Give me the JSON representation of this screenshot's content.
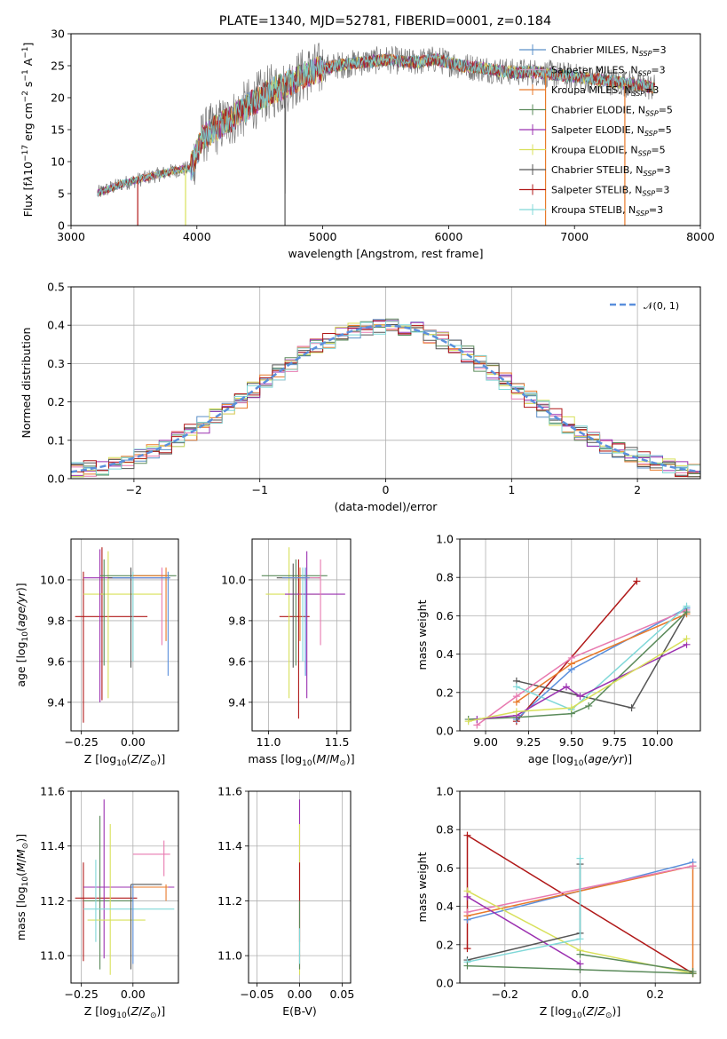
{
  "figure_title": "PLATE=1340, MJD=52781, FIBERID=0001, z=0.184",
  "colors": {
    "chabrier_miles": "#5a8fc8",
    "salpeter_miles": "#c8a0c0",
    "kroupa_miles": "#e87a2a",
    "chabrier_elodie": "#5a8a5a",
    "salpeter_elodie": "#9b30b0",
    "kroupa_elodie": "#d8e05a",
    "chabrier_stelib": "#555555",
    "salpeter_stelib": "#b01818",
    "kroupa_stelib": "#80d8d8",
    "extra_blue": "#5a8fdc",
    "extra_pink": "#e87ab0"
  },
  "chart_data": [
    {
      "id": "spectrum",
      "type": "line",
      "title": "PLATE=1340, MJD=52781, FIBERID=0001, z=0.184",
      "xlabel": "wavelength [Angstrom, rest frame]",
      "ylabel": "Flux [f_λ 10^-17 erg cm^-2 s^-1 A^-1]",
      "xlim": [
        3000,
        8000
      ],
      "ylim": [
        0,
        30
      ],
      "xticks": [
        "3000",
        "4000",
        "5000",
        "6000",
        "7000",
        "8000"
      ],
      "yticks": [
        "0",
        "5",
        "10",
        "15",
        "20",
        "25",
        "30"
      ],
      "grid": false,
      "legend_position": "top-right",
      "legend": [
        {
          "name": "Chabrier MILES, N_SSP=3",
          "color": "#5a8fc8"
        },
        {
          "name": "Salpeter MILES, N_SSP=3",
          "color": "#c8a0c0"
        },
        {
          "name": "Kroupa MILES, N_SSP=3",
          "color": "#e87a2a"
        },
        {
          "name": "Chabrier ELODIE, N_SSP=5",
          "color": "#5a8a5a"
        },
        {
          "name": "Salpeter ELODIE, N_SSP=5",
          "color": "#9b30b0"
        },
        {
          "name": "Kroupa ELODIE, N_SSP=5",
          "color": "#d8e05a"
        },
        {
          "name": "Chabrier STELIB, N_SSP=3",
          "color": "#555555"
        },
        {
          "name": "Salpeter STELIB, N_SSP=3",
          "color": "#b01818"
        },
        {
          "name": "Kroupa STELIB, N_SSP=3",
          "color": "#80d8d8"
        }
      ],
      "continuum": {
        "x": [
          3200,
          3400,
          3600,
          3800,
          3950,
          4050,
          4300,
          4500,
          4700,
          4900,
          5100,
          5300,
          5500,
          5700,
          5900,
          6100,
          6300,
          6500,
          6700,
          6900,
          7100,
          7300,
          7500,
          7650
        ],
        "y": [
          5,
          6.5,
          7.5,
          8.5,
          9,
          14,
          17,
          20,
          22,
          24,
          25,
          25.5,
          26,
          25.5,
          26,
          25,
          24.5,
          24,
          24,
          23.5,
          23,
          22.5,
          22,
          21.5
        ]
      },
      "dropouts_x": [
        3530,
        3910,
        4700,
        6770,
        7400
      ]
    },
    {
      "id": "residuals",
      "type": "line",
      "xlabel": "(data-model)/error",
      "ylabel": "Normed distribution",
      "xlim": [
        -2.5,
        2.5
      ],
      "ylim": [
        0,
        0.5
      ],
      "xticks": [
        "−2",
        "−1",
        "0",
        "1",
        "2"
      ],
      "yticks": [
        "0.0",
        "0.1",
        "0.2",
        "0.3",
        "0.4",
        "0.5"
      ],
      "grid": true,
      "legend_position": "top-right",
      "legend": [
        {
          "name": "𝒩(0, 1)",
          "color": "#5a8fdc",
          "style": "dashed"
        }
      ]
    },
    {
      "id": "age_vs_Z",
      "type": "scatter",
      "xlabel": "Z [log10(Z/Z⊙)]",
      "ylabel": "age [log10(age/yr)]",
      "xlim": [
        -0.3,
        0.22
      ],
      "ylim": [
        9.26,
        10.2
      ],
      "xticks": [
        "−0.25",
        "0.00"
      ],
      "yticks": [
        "9.4",
        "9.6",
        "9.8",
        "10.0"
      ],
      "grid": true
    },
    {
      "id": "age_vs_mass",
      "type": "scatter",
      "xlabel": "mass [log10(M/M⊙)]",
      "xlim": [
        10.88,
        11.6
      ],
      "ylim": [
        9.26,
        10.2
      ],
      "xticks": [
        "11.0",
        "11.5"
      ],
      "yticks": [
        "9.4",
        "9.6",
        "9.8",
        "10.0"
      ],
      "grid": true
    },
    {
      "id": "weight_vs_age",
      "type": "line",
      "xlabel": "age [log10(age/yr)]",
      "ylabel": "mass weight",
      "xlim": [
        8.85,
        10.25
      ],
      "ylim": [
        0,
        1.0
      ],
      "xticks": [
        "9.00",
        "9.25",
        "9.50",
        "9.75",
        "10.00"
      ],
      "yticks": [
        "0.0",
        "0.2",
        "0.4",
        "0.6",
        "0.8",
        "1.0"
      ],
      "grid": true,
      "series": [
        {
          "color": "#b01818",
          "x": [
            9.18,
            9.88
          ],
          "y": [
            0.05,
            0.78
          ]
        },
        {
          "color": "#555555",
          "x": [
            9.18,
            9.85,
            10.17
          ],
          "y": [
            0.26,
            0.12,
            0.62
          ]
        },
        {
          "color": "#5a8fdc",
          "x": [
            9.18,
            9.5,
            10.17
          ],
          "y": [
            0.06,
            0.32,
            0.64
          ]
        },
        {
          "color": "#e87a2a",
          "x": [
            9.18,
            9.5,
            10.17
          ],
          "y": [
            0.15,
            0.35,
            0.61
          ]
        },
        {
          "color": "#e87ab0",
          "x": [
            8.95,
            9.18,
            9.5,
            10.17
          ],
          "y": [
            0.03,
            0.18,
            0.38,
            0.63
          ]
        },
        {
          "color": "#80d8d8",
          "x": [
            9.18,
            9.5,
            10.17
          ],
          "y": [
            0.23,
            0.11,
            0.65
          ]
        },
        {
          "color": "#5a8a5a",
          "x": [
            8.9,
            9.18,
            9.5,
            9.6,
            10.17
          ],
          "y": [
            0.06,
            0.07,
            0.09,
            0.13,
            0.62
          ]
        },
        {
          "color": "#9b30b0",
          "x": [
            8.95,
            9.18,
            9.47,
            9.55,
            10.17
          ],
          "y": [
            0.06,
            0.08,
            0.23,
            0.18,
            0.45
          ]
        },
        {
          "color": "#d8e05a",
          "x": [
            8.9,
            9.18,
            9.5,
            10.17
          ],
          "y": [
            0.05,
            0.1,
            0.12,
            0.48
          ]
        }
      ]
    },
    {
      "id": "mass_vs_Z",
      "type": "scatter",
      "xlabel": "Z [log10(Z/Z⊙)]",
      "ylabel": "mass [log10(M/M⊙)]",
      "xlim": [
        -0.3,
        0.22
      ],
      "ylim": [
        10.9,
        11.6
      ],
      "xticks": [
        "−0.25",
        "0.00"
      ],
      "yticks": [
        "11.0",
        "11.2",
        "11.4",
        "11.6"
      ],
      "grid": true
    },
    {
      "id": "mass_vs_EBV",
      "type": "scatter",
      "xlabel": "E(B-V)",
      "xlim": [
        -0.06,
        0.06
      ],
      "ylim": [
        10.9,
        11.6
      ],
      "xticks": [
        "−0.05",
        "0.00",
        "0.05"
      ],
      "yticks": [
        "11.0",
        "11.2",
        "11.4",
        "11.6"
      ],
      "grid": true
    },
    {
      "id": "weight_vs_Z",
      "type": "line",
      "xlabel": "Z [log10(Z/Z⊙)]",
      "ylabel": "mass weight",
      "xlim": [
        -0.32,
        0.32
      ],
      "ylim": [
        0,
        1.0
      ],
      "xticks": [
        "−0.2",
        "0.0",
        "0.2"
      ],
      "yticks": [
        "0.0",
        "0.2",
        "0.4",
        "0.6",
        "0.8",
        "1.0"
      ],
      "grid": true,
      "series": [
        {
          "color": "#b01818",
          "x": [
            -0.3,
            -0.3,
            0.3,
            0.3
          ],
          "y": [
            0.18,
            0.77,
            0.05,
            0.05
          ]
        },
        {
          "color": "#5a8fdc",
          "x": [
            -0.3,
            0.3
          ],
          "y": [
            0.33,
            0.63
          ]
        },
        {
          "color": "#e87a2a",
          "x": [
            -0.3,
            0.3,
            0.3
          ],
          "y": [
            0.35,
            0.61,
            0.05
          ]
        },
        {
          "color": "#e87ab0",
          "x": [
            -0.3,
            0.3
          ],
          "y": [
            0.37,
            0.61
          ]
        },
        {
          "color": "#d8e05a",
          "x": [
            -0.3,
            0.0,
            0.3
          ],
          "y": [
            0.48,
            0.17,
            0.05
          ]
        },
        {
          "color": "#9b30b0",
          "x": [
            -0.3,
            0.0,
            0.0
          ],
          "y": [
            0.45,
            0.1,
            0.07
          ]
        },
        {
          "color": "#555555",
          "x": [
            -0.3,
            0.0,
            0.0
          ],
          "y": [
            0.12,
            0.26,
            0.62
          ]
        },
        {
          "color": "#80d8d8",
          "x": [
            -0.3,
            0.0,
            0.0
          ],
          "y": [
            0.11,
            0.23,
            0.65
          ]
        },
        {
          "color": "#5a8a5a",
          "x": [
            -0.3,
            0.0,
            0.3
          ],
          "y": [
            0.09,
            0.07,
            0.05
          ]
        },
        {
          "color": "#5a8a5a",
          "x": [
            0.0,
            0.3
          ],
          "y": [
            0.15,
            0.06
          ]
        }
      ]
    }
  ]
}
